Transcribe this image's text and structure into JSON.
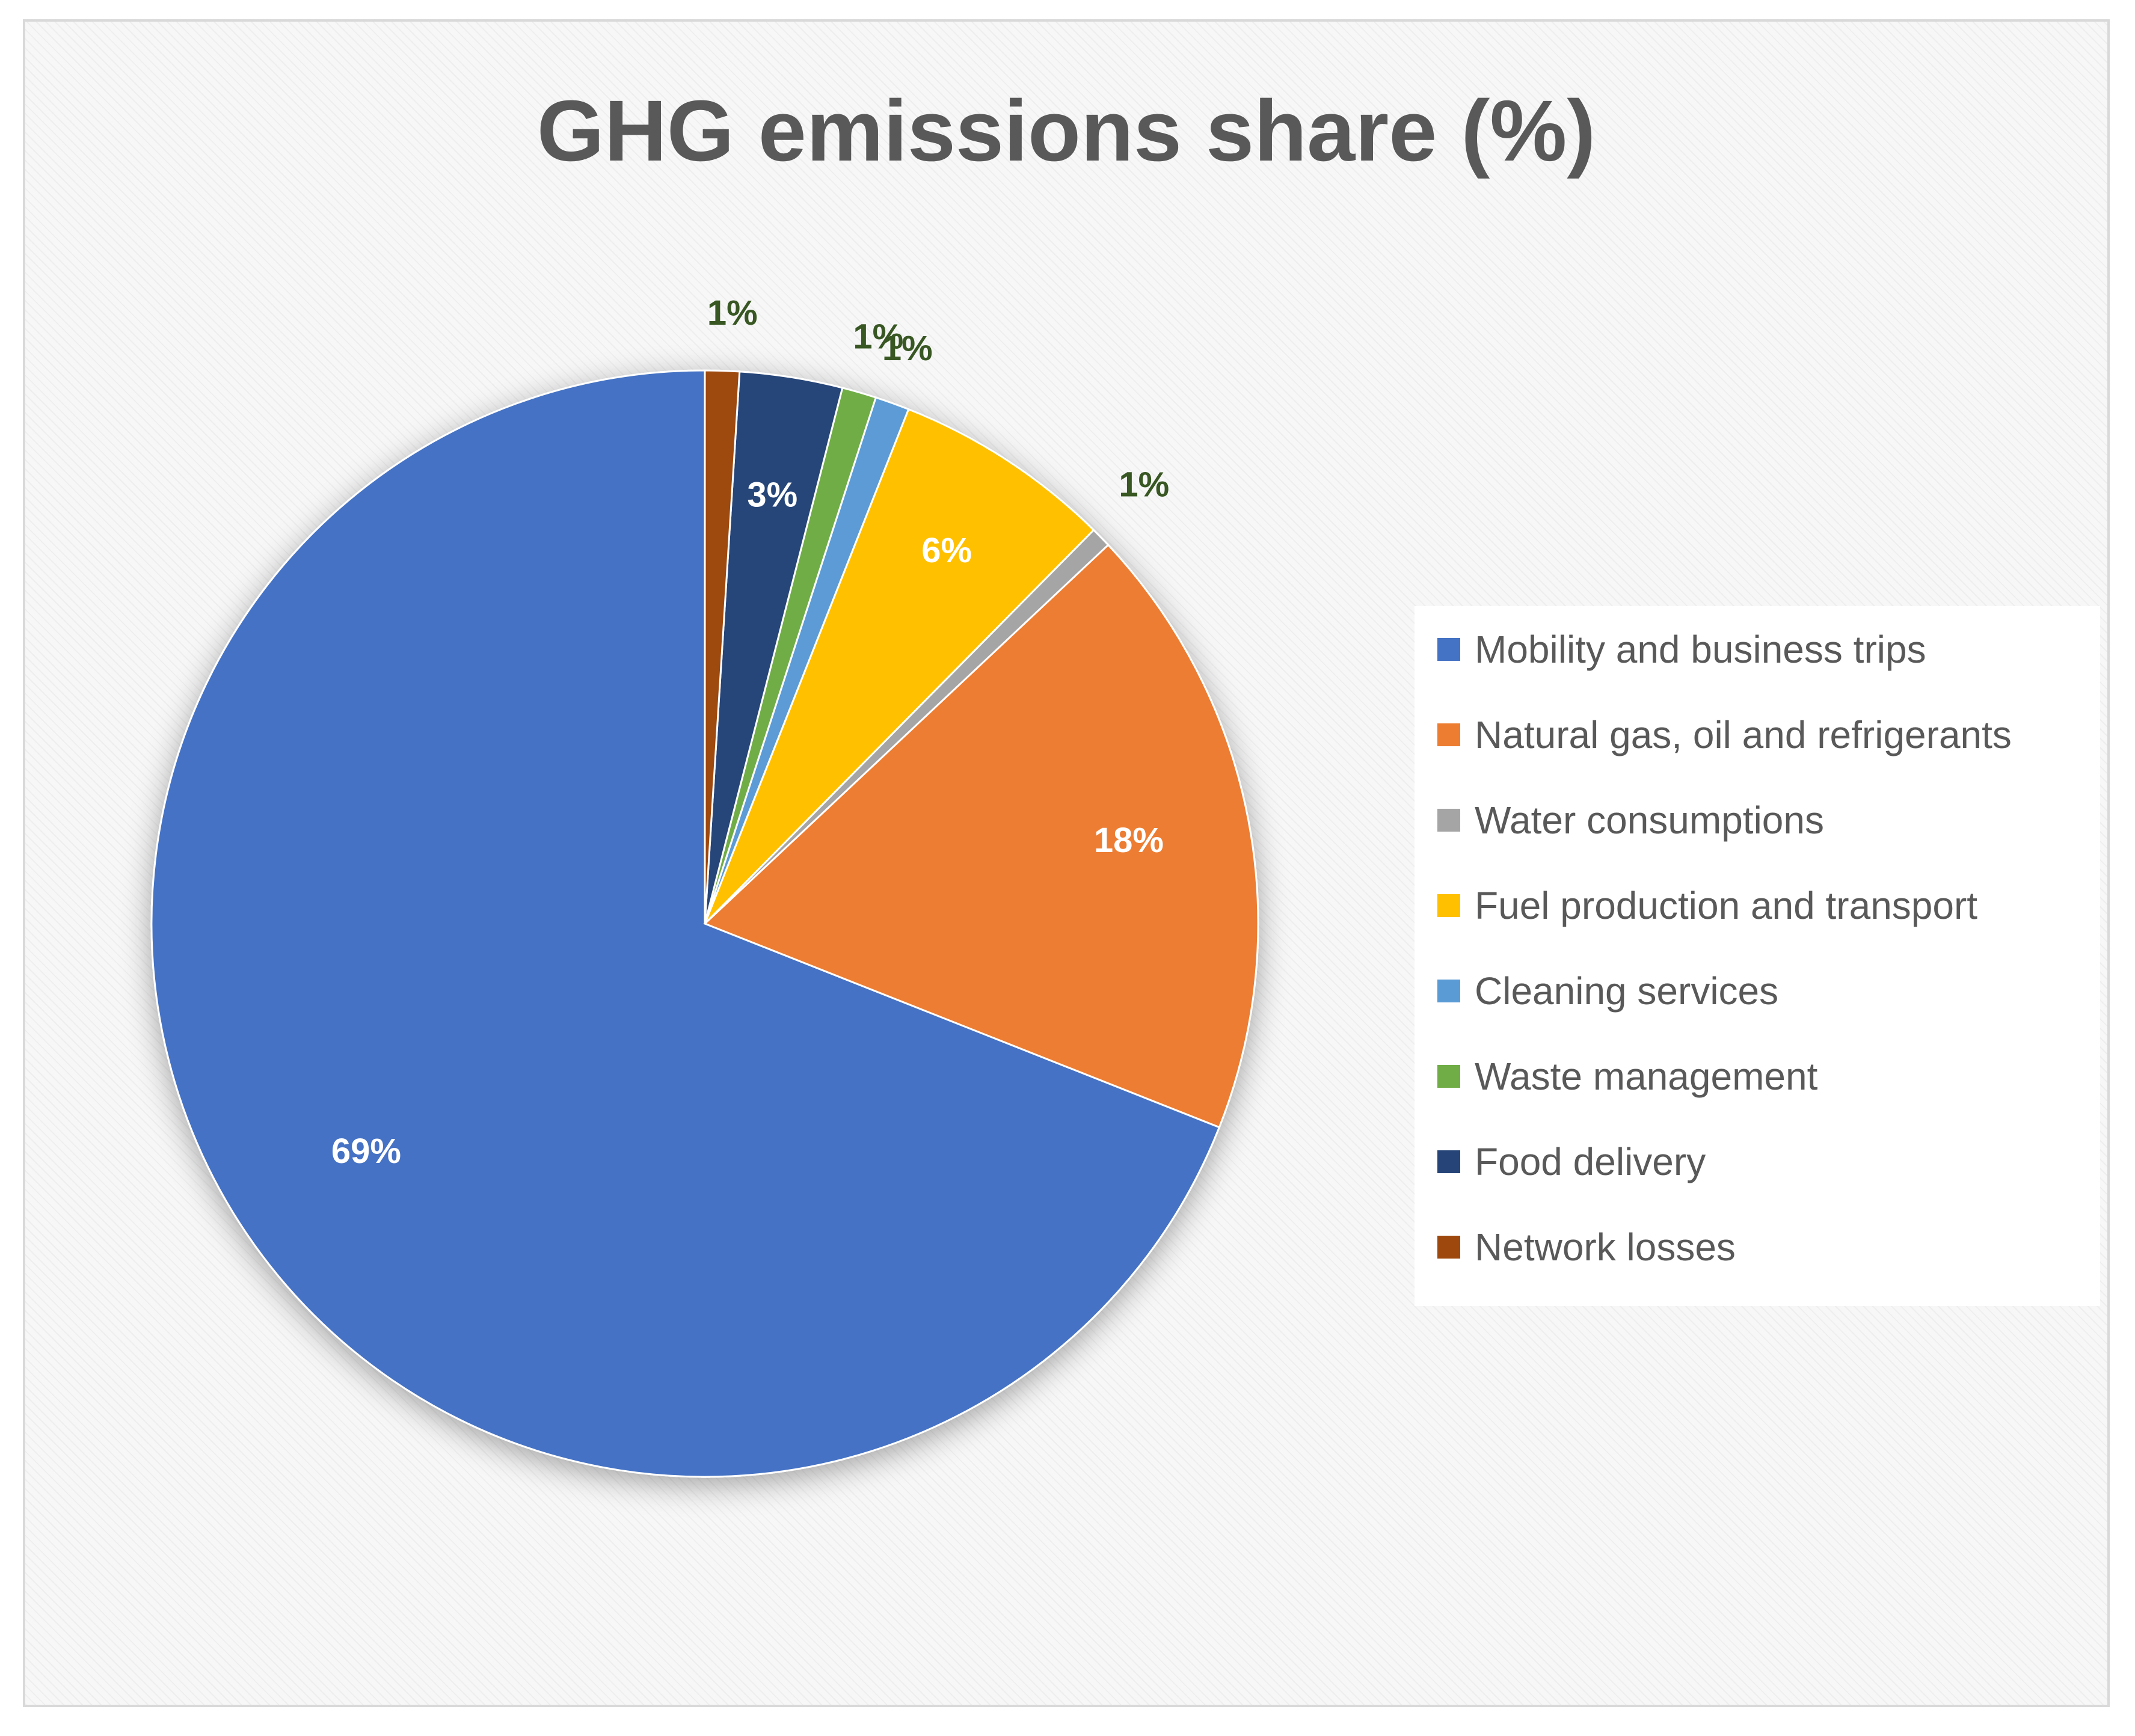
{
  "chart_data": {
    "type": "pie",
    "title": "GHG emissions share (%)",
    "unit": "%",
    "slices": [
      {
        "name": "Mobility and business trips",
        "value": 69,
        "label": "69%",
        "color": "#4472C4",
        "label_color": "#ffffff"
      },
      {
        "name": "Natural gas, oil and refrigerants",
        "value": 18,
        "label": "18%",
        "color": "#ED7D31",
        "label_color": "#ffffff"
      },
      {
        "name": "Water consumptions",
        "value": 0.6,
        "label": "1%",
        "color": "#A5A5A5",
        "label_color": "#385723"
      },
      {
        "name": "Fuel production and transport",
        "value": 6.4,
        "label": "6%",
        "color": "#FFC000",
        "label_color": "#ffffff"
      },
      {
        "name": "Cleaning services",
        "value": 1.0,
        "label": "1%",
        "color": "#5B9BD5",
        "label_color": "#385723"
      },
      {
        "name": "Waste management",
        "value": 1.0,
        "label": "1%",
        "color": "#70AD47",
        "label_color": "#385723"
      },
      {
        "name": "Food delivery",
        "value": 3.0,
        "label": "3%",
        "color": "#264478",
        "label_color": "#ffffff"
      },
      {
        "name": "Network losses",
        "value": 1.0,
        "label": "1%",
        "color": "#9E480E",
        "label_color": "#385723"
      }
    ],
    "legend_position": "right",
    "start_angle": "12 o'clock",
    "direction": "counterclockwise"
  }
}
